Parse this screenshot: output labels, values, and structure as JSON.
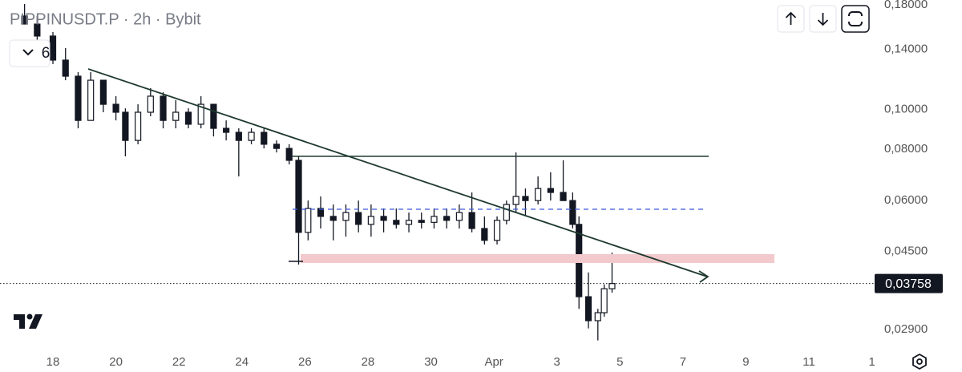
{
  "chart_data": {
    "type": "candlestick",
    "title": "PIPPINUSDT.P · 2h · Bybit",
    "indicator_count": 6,
    "x": [
      -0.9,
      -0.5,
      0,
      0.4,
      0.8,
      1.2,
      1.6,
      2.0,
      2.3,
      2.7,
      3.1,
      3.5,
      3.9,
      4.3,
      4.7,
      5.1,
      5.5,
      5.9,
      6.3,
      6.7,
      7.1,
      7.5,
      7.8,
      8.1,
      8.5,
      8.9,
      9.3,
      9.7,
      10.1,
      10.5,
      10.9,
      11.3,
      11.7,
      12.1,
      12.5,
      12.9,
      13.3,
      13.7,
      14.1,
      14.4,
      14.7,
      15.0,
      15.4,
      15.8,
      16.2,
      16.5,
      16.7,
      17.0,
      17.3,
      17.5,
      17.75
    ],
    "open": [
      0.169,
      0.1615,
      0.151,
      0.1319,
      0.1205,
      0.094,
      0.1178,
      0.1029,
      0.0984,
      0.084,
      0.0984,
      0.1077,
      0.094,
      0.0984,
      0.092,
      0.1029,
      0.0899,
      0.0879,
      0.084,
      0.0879,
      0.0822,
      0.0803,
      0.0751,
      0.0501,
      0.0573,
      0.0548,
      0.0536,
      0.056,
      0.0524,
      0.0548,
      0.0536,
      0.0524,
      0.0536,
      0.053,
      0.0548,
      0.0536,
      0.056,
      0.0512,
      0.0479,
      0.0536,
      0.0586,
      0.0613,
      0.0599,
      0.0641,
      0.0627,
      0.0599,
      0.0524,
      0.0349,
      0.0305,
      0.0319,
      0.0365
    ],
    "high": [
      0.1808,
      0.169,
      0.1544,
      0.1411,
      0.1233,
      0.1233,
      0.1178,
      0.1077,
      0.1006,
      0.1029,
      0.1127,
      0.1101,
      0.1053,
      0.1006,
      0.1077,
      0.1029,
      0.094,
      0.0899,
      0.0899,
      0.0899,
      0.084,
      0.0822,
      0.0768,
      0.0599,
      0.0613,
      0.0586,
      0.0586,
      0.0599,
      0.0586,
      0.0573,
      0.0573,
      0.056,
      0.056,
      0.0573,
      0.0573,
      0.0586,
      0.0627,
      0.0548,
      0.0548,
      0.0599,
      0.0785,
      0.0641,
      0.0686,
      0.0702,
      0.0751,
      0.0627,
      0.0548,
      0.04,
      0.0326,
      0.0374,
      0.0447
    ],
    "low": [
      0.1615,
      0.1476,
      0.129,
      0.1178,
      0.0899,
      0.094,
      0.0984,
      0.094,
      0.0768,
      0.0822,
      0.0962,
      0.0899,
      0.0899,
      0.0899,
      0.0899,
      0.0859,
      0.084,
      0.0686,
      0.0822,
      0.0803,
      0.0785,
      0.0734,
      0.0418,
      0.0479,
      0.0512,
      0.0479,
      0.0489,
      0.0501,
      0.0489,
      0.0501,
      0.0512,
      0.0501,
      0.0512,
      0.0512,
      0.0512,
      0.0512,
      0.0501,
      0.0468,
      0.0468,
      0.0524,
      0.056,
      0.0548,
      0.0586,
      0.0599,
      0.0599,
      0.0512,
      0.0326,
      0.0292,
      0.0273,
      0.0312,
      0.0357
    ],
    "close": [
      0.1615,
      0.151,
      0.1319,
      0.1205,
      0.094,
      0.1178,
      0.1029,
      0.0984,
      0.084,
      0.0984,
      0.1077,
      0.094,
      0.0984,
      0.092,
      0.1029,
      0.0899,
      0.0879,
      0.084,
      0.0879,
      0.0822,
      0.0803,
      0.0751,
      0.0501,
      0.0573,
      0.0548,
      0.0536,
      0.056,
      0.0524,
      0.0548,
      0.0536,
      0.0524,
      0.0536,
      0.053,
      0.0548,
      0.0536,
      0.056,
      0.0512,
      0.0479,
      0.0536,
      0.0586,
      0.0613,
      0.0599,
      0.0641,
      0.0627,
      0.0599,
      0.0524,
      0.0349,
      0.0305,
      0.0319,
      0.0365,
      0.03758
    ],
    "up_color": "#ffffff",
    "down_color": "#131722",
    "log_scale": true,
    "ylim": [
      0.0257,
      0.1849
    ],
    "yticks": [
      {
        "value": 0.18,
        "label": "0,18000"
      },
      {
        "value": 0.14,
        "label": "0,14000"
      },
      {
        "value": 0.1,
        "label": "0,10000"
      },
      {
        "value": 0.08,
        "label": "0,08000"
      },
      {
        "value": 0.06,
        "label": "0,06000"
      },
      {
        "value": 0.045,
        "label": "0,04500"
      },
      {
        "value": 0.029,
        "label": "0,02900"
      }
    ],
    "xlim": [
      -1.68,
      26.06
    ],
    "xticks": [
      {
        "value": 0,
        "label": "18"
      },
      {
        "value": 2,
        "label": "20"
      },
      {
        "value": 4,
        "label": "22"
      },
      {
        "value": 6,
        "label": "24"
      },
      {
        "value": 8,
        "label": "26"
      },
      {
        "value": 10,
        "label": "28"
      },
      {
        "value": 12,
        "label": "30"
      },
      {
        "value": 14,
        "label": "Apr"
      },
      {
        "value": 16,
        "label": "3"
      },
      {
        "value": 18,
        "label": "5"
      },
      {
        "value": 20,
        "label": "7"
      },
      {
        "value": 22,
        "label": "9"
      },
      {
        "value": 24,
        "label": "11"
      },
      {
        "value": 26,
        "label": "1"
      }
    ],
    "last_price": {
      "value": 0.03758,
      "label": "0,03758"
    }
  }
}
